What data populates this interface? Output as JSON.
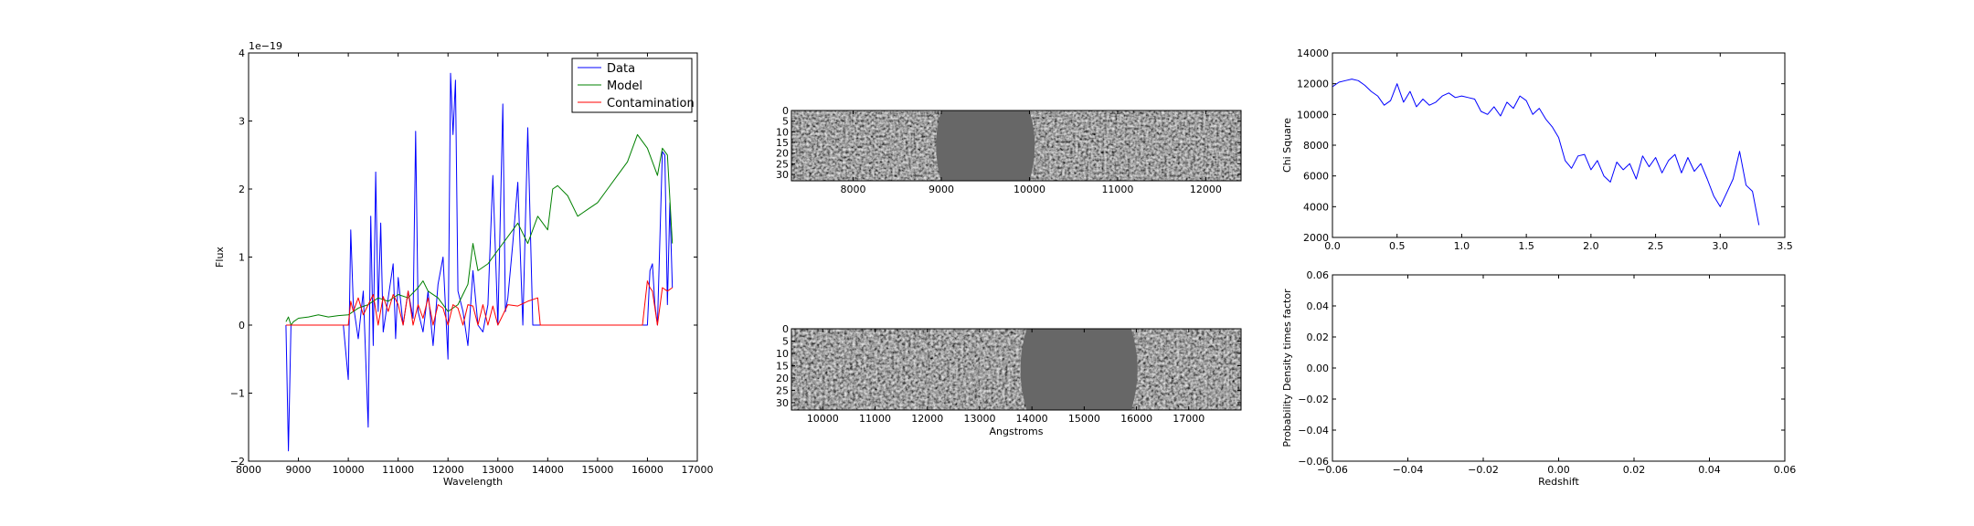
{
  "chart_data": [
    {
      "type": "line",
      "xlabel": "Wavelength",
      "ylabel": "Flux",
      "y_offset_label": "1e−19",
      "xlim": [
        8000,
        17000
      ],
      "ylim": [
        -2,
        4
      ],
      "x_ticks": [
        8000,
        9000,
        10000,
        11000,
        12000,
        13000,
        14000,
        15000,
        16000,
        17000
      ],
      "y_ticks": [
        -2,
        -1,
        0,
        1,
        2,
        3,
        4
      ],
      "y_tick_labels": [
        "−2",
        "−1",
        "0",
        "1",
        "2",
        "3",
        "4"
      ],
      "legend": "top-right",
      "grid": false,
      "series": [
        {
          "name": "Data",
          "color": "#0000ff",
          "x": [
            8750,
            8800,
            8850,
            9000,
            9300,
            9600,
            9900,
            10000,
            10050,
            10100,
            10200,
            10300,
            10400,
            10450,
            10500,
            10550,
            10600,
            10650,
            10700,
            10800,
            10900,
            10950,
            11000,
            11100,
            11200,
            11300,
            11350,
            11400,
            11500,
            11600,
            11700,
            11800,
            11900,
            12000,
            12050,
            12100,
            12150,
            12200,
            12300,
            12400,
            12500,
            12600,
            12700,
            12800,
            12900,
            13000,
            13100,
            13150,
            13200,
            13300,
            13400,
            13500,
            13600,
            13700,
            13800,
            13900,
            14000,
            14500,
            15000,
            15500,
            16000,
            16050,
            16100,
            16150,
            16200,
            16300,
            16350,
            16400,
            16450,
            16500
          ],
          "y": [
            0.0,
            -1.85,
            0.0,
            0.0,
            0.0,
            0.0,
            0.0,
            -0.8,
            1.4,
            0.3,
            -0.2,
            0.5,
            -1.5,
            1.6,
            -0.3,
            2.25,
            0.2,
            1.5,
            -0.1,
            0.4,
            0.9,
            -0.2,
            0.7,
            0.0,
            0.5,
            0.1,
            2.85,
            0.2,
            -0.1,
            0.5,
            -0.3,
            0.6,
            1.0,
            -0.5,
            3.7,
            2.8,
            3.6,
            0.5,
            0.2,
            -0.3,
            0.8,
            0.0,
            -0.1,
            0.3,
            2.2,
            0.0,
            3.25,
            0.2,
            0.4,
            1.2,
            2.1,
            0.0,
            2.9,
            0.0,
            0.0,
            0.0,
            0.0,
            0.0,
            0.0,
            0.0,
            0.0,
            0.8,
            0.9,
            0.3,
            0.0,
            2.55,
            2.5,
            0.3,
            1.8,
            0.55
          ]
        },
        {
          "name": "Model",
          "color": "#008000",
          "x": [
            8750,
            8800,
            8850,
            8900,
            9000,
            9200,
            9400,
            9600,
            9800,
            10000,
            10200,
            10400,
            10600,
            10800,
            11000,
            11200,
            11400,
            11500,
            11600,
            11800,
            12000,
            12200,
            12400,
            12500,
            12600,
            12800,
            13000,
            13200,
            13400,
            13600,
            13800,
            14000,
            14100,
            14200,
            14400,
            14600,
            14800,
            15000,
            15200,
            15400,
            15600,
            15800,
            16000,
            16200,
            16300,
            16400,
            16500
          ],
          "y": [
            0.05,
            0.12,
            0.0,
            0.05,
            0.1,
            0.12,
            0.15,
            0.12,
            0.14,
            0.15,
            0.25,
            0.3,
            0.4,
            0.35,
            0.45,
            0.4,
            0.55,
            0.65,
            0.5,
            0.4,
            0.2,
            0.3,
            0.6,
            1.2,
            0.8,
            0.9,
            1.1,
            1.3,
            1.5,
            1.2,
            1.6,
            1.4,
            2.0,
            2.05,
            1.9,
            1.6,
            1.7,
            1.8,
            2.0,
            2.2,
            2.4,
            2.8,
            2.6,
            2.2,
            2.6,
            2.5,
            1.2
          ]
        },
        {
          "name": "Contamination",
          "color": "#ff0000",
          "x": [
            8750,
            8800,
            9000,
            9500,
            10000,
            10050,
            10100,
            10200,
            10300,
            10400,
            10500,
            10600,
            10700,
            10800,
            10900,
            11000,
            11100,
            11200,
            11300,
            11400,
            11500,
            11600,
            11700,
            11800,
            11900,
            12000,
            12100,
            12200,
            12300,
            12400,
            12500,
            12600,
            12700,
            12800,
            12900,
            13000,
            13200,
            13400,
            13600,
            13800,
            13850,
            14000,
            15000,
            15900,
            16000,
            16050,
            16100,
            16200,
            16300,
            16400,
            16500
          ],
          "y": [
            0.0,
            0.0,
            0.0,
            0.0,
            0.0,
            0.35,
            0.2,
            0.4,
            0.15,
            0.3,
            0.45,
            0.0,
            0.42,
            0.2,
            0.45,
            0.3,
            0.0,
            0.5,
            0.0,
            0.3,
            0.1,
            0.4,
            0.0,
            0.3,
            0.25,
            0.0,
            0.3,
            0.25,
            0.0,
            0.3,
            0.28,
            0.0,
            0.3,
            0.0,
            0.28,
            0.0,
            0.3,
            0.28,
            0.35,
            0.4,
            0.0,
            0.0,
            0.0,
            0.0,
            0.65,
            0.55,
            0.5,
            0.0,
            0.55,
            0.5,
            0.55
          ]
        }
      ]
    },
    {
      "type": "heatmap",
      "xlim": [
        7300,
        12400
      ],
      "x_ticks": [
        8000,
        9000,
        10000,
        11000,
        12000
      ],
      "y_ticks": [
        0,
        5,
        10,
        15,
        20,
        25,
        30
      ],
      "ylim": [
        33,
        0
      ],
      "masked_region": [
        9000,
        10000
      ],
      "colormap": "grayscale"
    },
    {
      "type": "heatmap",
      "xlabel": "Angstroms",
      "xlim": [
        9400,
        18000
      ],
      "x_ticks": [
        10000,
        11000,
        12000,
        13000,
        14000,
        15000,
        16000,
        17000
      ],
      "y_ticks": [
        0,
        5,
        10,
        15,
        20,
        25,
        30
      ],
      "ylim": [
        33,
        0
      ],
      "masked_region": [
        13900,
        15900
      ],
      "colormap": "grayscale"
    },
    {
      "type": "line",
      "ylabel": "Chi Square",
      "xlim": [
        0.0,
        3.5
      ],
      "ylim": [
        2000,
        14000
      ],
      "x_ticks": [
        0.0,
        0.5,
        1.0,
        1.5,
        2.0,
        2.5,
        3.0,
        3.5
      ],
      "x_tick_labels": [
        "0.0",
        "0.5",
        "1.0",
        "1.5",
        "2.0",
        "2.5",
        "3.0",
        "3.5"
      ],
      "y_ticks": [
        2000,
        4000,
        6000,
        8000,
        10000,
        12000,
        14000
      ],
      "series": [
        {
          "color": "#0000ff",
          "x": [
            0.0,
            0.05,
            0.1,
            0.15,
            0.2,
            0.25,
            0.3,
            0.35,
            0.4,
            0.45,
            0.5,
            0.55,
            0.6,
            0.65,
            0.7,
            0.75,
            0.8,
            0.85,
            0.9,
            0.95,
            1.0,
            1.05,
            1.1,
            1.15,
            1.2,
            1.25,
            1.3,
            1.35,
            1.4,
            1.45,
            1.5,
            1.55,
            1.6,
            1.65,
            1.7,
            1.75,
            1.8,
            1.85,
            1.9,
            1.95,
            2.0,
            2.05,
            2.1,
            2.15,
            2.2,
            2.25,
            2.3,
            2.35,
            2.4,
            2.45,
            2.5,
            2.55,
            2.6,
            2.65,
            2.7,
            2.75,
            2.8,
            2.85,
            2.9,
            2.95,
            3.0,
            3.05,
            3.1,
            3.15,
            3.2,
            3.25,
            3.3
          ],
          "y": [
            11800,
            12100,
            12200,
            12300,
            12200,
            11900,
            11500,
            11200,
            10600,
            10900,
            12000,
            10800,
            11500,
            10500,
            11000,
            10600,
            10800,
            11200,
            11400,
            11100,
            11200,
            11100,
            11000,
            10200,
            10000,
            10500,
            9900,
            10800,
            10400,
            11200,
            10900,
            10000,
            10400,
            9700,
            9200,
            8500,
            7000,
            6500,
            7300,
            7400,
            6400,
            7000,
            6000,
            5600,
            6900,
            6400,
            6800,
            5800,
            7300,
            6600,
            7200,
            6200,
            7000,
            7400,
            6200,
            7200,
            6300,
            6800,
            5800,
            4700,
            4000,
            4900,
            5800,
            7600,
            5400,
            5000,
            2800
          ]
        }
      ]
    },
    {
      "type": "line",
      "xlabel": "Redshift",
      "ylabel": "Probability Density times factor",
      "xlim": [
        -0.06,
        0.06
      ],
      "ylim": [
        -0.06,
        0.06
      ],
      "x_ticks": [
        -0.06,
        -0.04,
        -0.02,
        0.0,
        0.02,
        0.04,
        0.06
      ],
      "x_tick_labels": [
        "−0.06",
        "−0.04",
        "−0.02",
        "0.00",
        "0.02",
        "0.04",
        "0.06"
      ],
      "y_ticks": [
        -0.06,
        -0.04,
        -0.02,
        0.0,
        0.02,
        0.04,
        0.06
      ],
      "y_tick_labels": [
        "−0.06",
        "−0.04",
        "−0.02",
        "0.00",
        "0.02",
        "0.04",
        "0.06"
      ],
      "series": []
    }
  ]
}
